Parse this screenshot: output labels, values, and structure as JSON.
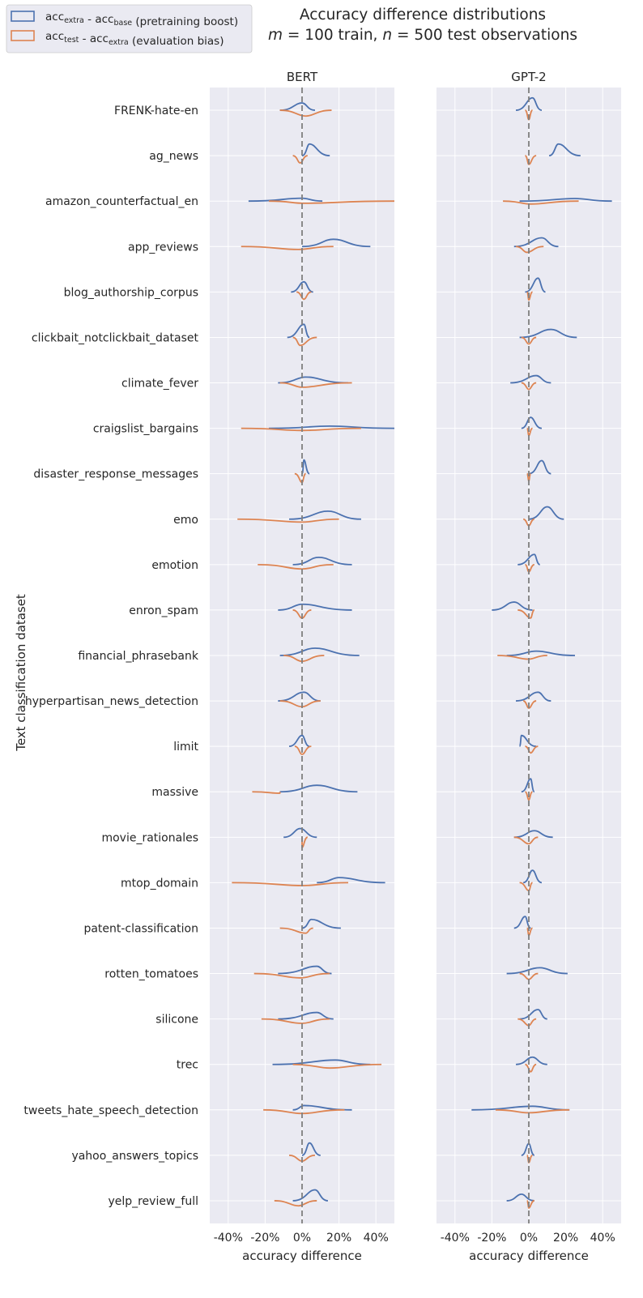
{
  "chart_data": {
    "type": "violin",
    "title_line1": "Accuracy difference distributions",
    "title_line2_parts": [
      {
        "text": "m",
        "italic": true
      },
      {
        "text": " = 100 train, ",
        "italic": false
      },
      {
        "text": "n",
        "italic": true
      },
      {
        "text": " = 500 test observations",
        "italic": false
      }
    ],
    "ylabel": "Text classification dataset",
    "xlabel": "accuracy difference",
    "xlim": [
      -0.5,
      0.5
    ],
    "xticks": [
      -0.4,
      -0.2,
      0.0,
      0.2,
      0.4
    ],
    "xtick_labels": [
      "-40%",
      "-20%",
      "0%",
      "20%",
      "40%"
    ],
    "reference_line_x": 0.0,
    "colors": {
      "boost": "#4c72b0",
      "bias": "#dd8452",
      "panel_bg": "#eaeaf2",
      "grid": "#ffffff",
      "ref_line": "#7f7f7f"
    },
    "legend": [
      {
        "key": "boost",
        "parts": [
          {
            "t": "acc",
            "sub": false
          },
          {
            "t": "extra",
            "sub": true
          },
          {
            "t": " - acc",
            "sub": false
          },
          {
            "t": "base",
            "sub": true
          },
          {
            "t": " (pretraining boost)",
            "sub": false
          }
        ]
      },
      {
        "key": "bias",
        "parts": [
          {
            "t": "acc",
            "sub": false
          },
          {
            "t": "test",
            "sub": true
          },
          {
            "t": " - acc",
            "sub": false
          },
          {
            "t": "extra",
            "sub": true
          },
          {
            "t": " (evaluation bias)",
            "sub": false
          }
        ]
      }
    ],
    "datasets": [
      "FRENK-hate-en",
      "ag_news",
      "amazon_counterfactual_en",
      "app_reviews",
      "blog_authorship_corpus",
      "clickbait_notclickbait_dataset",
      "climate_fever",
      "craigslist_bargains",
      "disaster_response_messages",
      "emo",
      "emotion",
      "enron_spam",
      "financial_phrasebank",
      "hyperpartisan_news_detection",
      "limit",
      "massive",
      "movie_rationales",
      "mtop_domain",
      "patent-classification",
      "rotten_tomatoes",
      "silicone",
      "trec",
      "tweets_hate_speech_detection",
      "yahoo_answers_topics",
      "yelp_review_full"
    ],
    "panels": [
      {
        "name": "BERT",
        "boost": [
          [
            -0.12,
            0.07,
            0.0,
            0.5
          ],
          [
            0.0,
            0.15,
            0.04,
            0.8
          ],
          [
            -0.29,
            0.11,
            0.0,
            0.2
          ],
          [
            0.0,
            0.37,
            0.17,
            0.5
          ],
          [
            -0.06,
            0.06,
            0.01,
            0.7
          ],
          [
            -0.08,
            0.04,
            0.01,
            0.9
          ],
          [
            -0.13,
            0.25,
            0.02,
            0.4
          ],
          [
            -0.18,
            0.5,
            0.15,
            0.15
          ],
          [
            0.0,
            0.04,
            0.01,
            0.95
          ],
          [
            -0.07,
            0.32,
            0.14,
            0.55
          ],
          [
            -0.05,
            0.27,
            0.09,
            0.5
          ],
          [
            -0.13,
            0.27,
            0.0,
            0.4
          ],
          [
            -0.12,
            0.31,
            0.07,
            0.5
          ],
          [
            -0.13,
            0.1,
            0.01,
            0.6
          ],
          [
            -0.07,
            0.04,
            0.0,
            0.75
          ],
          [
            -0.12,
            0.3,
            0.08,
            0.45
          ],
          [
            -0.1,
            0.08,
            -0.01,
            0.6
          ],
          [
            0.08,
            0.45,
            0.2,
            0.35
          ],
          [
            0.0,
            0.21,
            0.05,
            0.6
          ],
          [
            -0.13,
            0.16,
            0.08,
            0.5
          ],
          [
            -0.13,
            0.17,
            0.08,
            0.45
          ],
          [
            -0.16,
            0.37,
            0.18,
            0.3
          ],
          [
            -0.05,
            0.27,
            0.01,
            0.3
          ],
          [
            0.0,
            0.1,
            0.04,
            0.85
          ],
          [
            -0.05,
            0.14,
            0.07,
            0.75
          ]
        ],
        "bias": [
          [
            -0.12,
            0.16,
            0.02,
            0.4
          ],
          [
            -0.05,
            0.03,
            -0.01,
            0.5
          ],
          [
            -0.18,
            0.5,
            0.01,
            0.15
          ],
          [
            -0.33,
            0.17,
            -0.02,
            0.2
          ],
          [
            -0.03,
            0.05,
            0.01,
            0.5
          ],
          [
            -0.05,
            0.08,
            -0.01,
            0.55
          ],
          [
            -0.12,
            0.27,
            0.0,
            0.3
          ],
          [
            -0.33,
            0.32,
            0.0,
            0.15
          ],
          [
            -0.04,
            0.02,
            0.0,
            0.6
          ],
          [
            -0.35,
            0.2,
            0.0,
            0.2
          ],
          [
            -0.24,
            0.17,
            0.0,
            0.3
          ],
          [
            -0.05,
            0.05,
            0.0,
            0.55
          ],
          [
            -0.1,
            0.12,
            0.0,
            0.4
          ],
          [
            -0.12,
            0.1,
            0.0,
            0.4
          ],
          [
            -0.04,
            0.05,
            0.0,
            0.55
          ],
          [
            -0.27,
            -0.12,
            -0.12,
            0.1
          ],
          [
            0.0,
            0.03,
            0.0,
            0.7
          ],
          [
            -0.38,
            0.25,
            0.01,
            0.2
          ],
          [
            -0.12,
            0.06,
            0.02,
            0.35
          ],
          [
            -0.26,
            0.15,
            -0.01,
            0.3
          ],
          [
            -0.22,
            0.15,
            0.0,
            0.3
          ],
          [
            -0.05,
            0.43,
            0.15,
            0.25
          ],
          [
            -0.21,
            0.23,
            0.0,
            0.25
          ],
          [
            -0.07,
            0.07,
            0.0,
            0.4
          ],
          [
            -0.15,
            0.08,
            -0.02,
            0.35
          ]
        ]
      },
      {
        "name": "GPT-2",
        "boost": [
          [
            -0.07,
            0.07,
            0.02,
            0.85
          ],
          [
            0.11,
            0.28,
            0.16,
            0.8
          ],
          [
            -0.05,
            0.45,
            0.25,
            0.18
          ],
          [
            -0.08,
            0.16,
            0.07,
            0.6
          ],
          [
            -0.02,
            0.09,
            0.05,
            0.95
          ],
          [
            -0.05,
            0.26,
            0.12,
            0.55
          ],
          [
            -0.1,
            0.12,
            0.04,
            0.5
          ],
          [
            -0.04,
            0.07,
            0.01,
            0.75
          ],
          [
            0.0,
            0.12,
            0.07,
            0.9
          ],
          [
            0.0,
            0.19,
            0.1,
            0.85
          ],
          [
            -0.06,
            0.06,
            0.03,
            0.7
          ],
          [
            -0.2,
            0.02,
            -0.08,
            0.55
          ],
          [
            -0.12,
            0.25,
            0.04,
            0.3
          ],
          [
            -0.07,
            0.12,
            0.05,
            0.6
          ],
          [
            -0.05,
            0.04,
            -0.04,
            0.75
          ],
          [
            -0.04,
            0.03,
            0.01,
            0.9
          ],
          [
            -0.08,
            0.13,
            0.03,
            0.45
          ],
          [
            -0.03,
            0.07,
            0.02,
            0.85
          ],
          [
            -0.08,
            0.01,
            -0.02,
            0.8
          ],
          [
            -0.12,
            0.21,
            0.06,
            0.4
          ],
          [
            -0.05,
            0.1,
            0.05,
            0.65
          ],
          [
            -0.07,
            0.1,
            0.02,
            0.5
          ],
          [
            -0.31,
            0.22,
            0.02,
            0.25
          ],
          [
            -0.04,
            0.03,
            0.0,
            0.8
          ],
          [
            -0.12,
            0.03,
            -0.04,
            0.45
          ]
        ],
        "bias": [
          [
            -0.02,
            0.02,
            0.0,
            0.65
          ],
          [
            -0.02,
            0.04,
            0.0,
            0.6
          ],
          [
            -0.14,
            0.27,
            0.01,
            0.2
          ],
          [
            -0.07,
            0.08,
            -0.01,
            0.4
          ],
          [
            -0.01,
            0.02,
            0.0,
            0.55
          ],
          [
            -0.04,
            0.04,
            0.0,
            0.45
          ],
          [
            -0.04,
            0.04,
            0.0,
            0.45
          ],
          [
            -0.01,
            0.02,
            0.0,
            0.5
          ],
          [
            -0.01,
            0.01,
            0.0,
            0.5
          ],
          [
            -0.03,
            0.03,
            0.0,
            0.45
          ],
          [
            -0.02,
            0.03,
            0.0,
            0.5
          ],
          [
            -0.06,
            0.03,
            0.01,
            0.55
          ],
          [
            -0.17,
            0.1,
            0.0,
            0.25
          ],
          [
            -0.03,
            0.04,
            0.0,
            0.5
          ],
          [
            -0.02,
            0.05,
            0.01,
            0.45
          ],
          [
            -0.02,
            0.02,
            0.0,
            0.55
          ],
          [
            -0.08,
            0.05,
            0.0,
            0.45
          ],
          [
            -0.05,
            0.02,
            0.0,
            0.55
          ],
          [
            -0.01,
            0.02,
            0.0,
            0.5
          ],
          [
            -0.05,
            0.05,
            0.0,
            0.4
          ],
          [
            -0.06,
            0.04,
            0.0,
            0.45
          ],
          [
            -0.02,
            0.04,
            0.01,
            0.5
          ],
          [
            -0.18,
            0.22,
            0.0,
            0.2
          ],
          [
            -0.01,
            0.02,
            0.0,
            0.5
          ],
          [
            -0.01,
            0.03,
            0.0,
            0.5
          ]
        ]
      }
    ]
  }
}
